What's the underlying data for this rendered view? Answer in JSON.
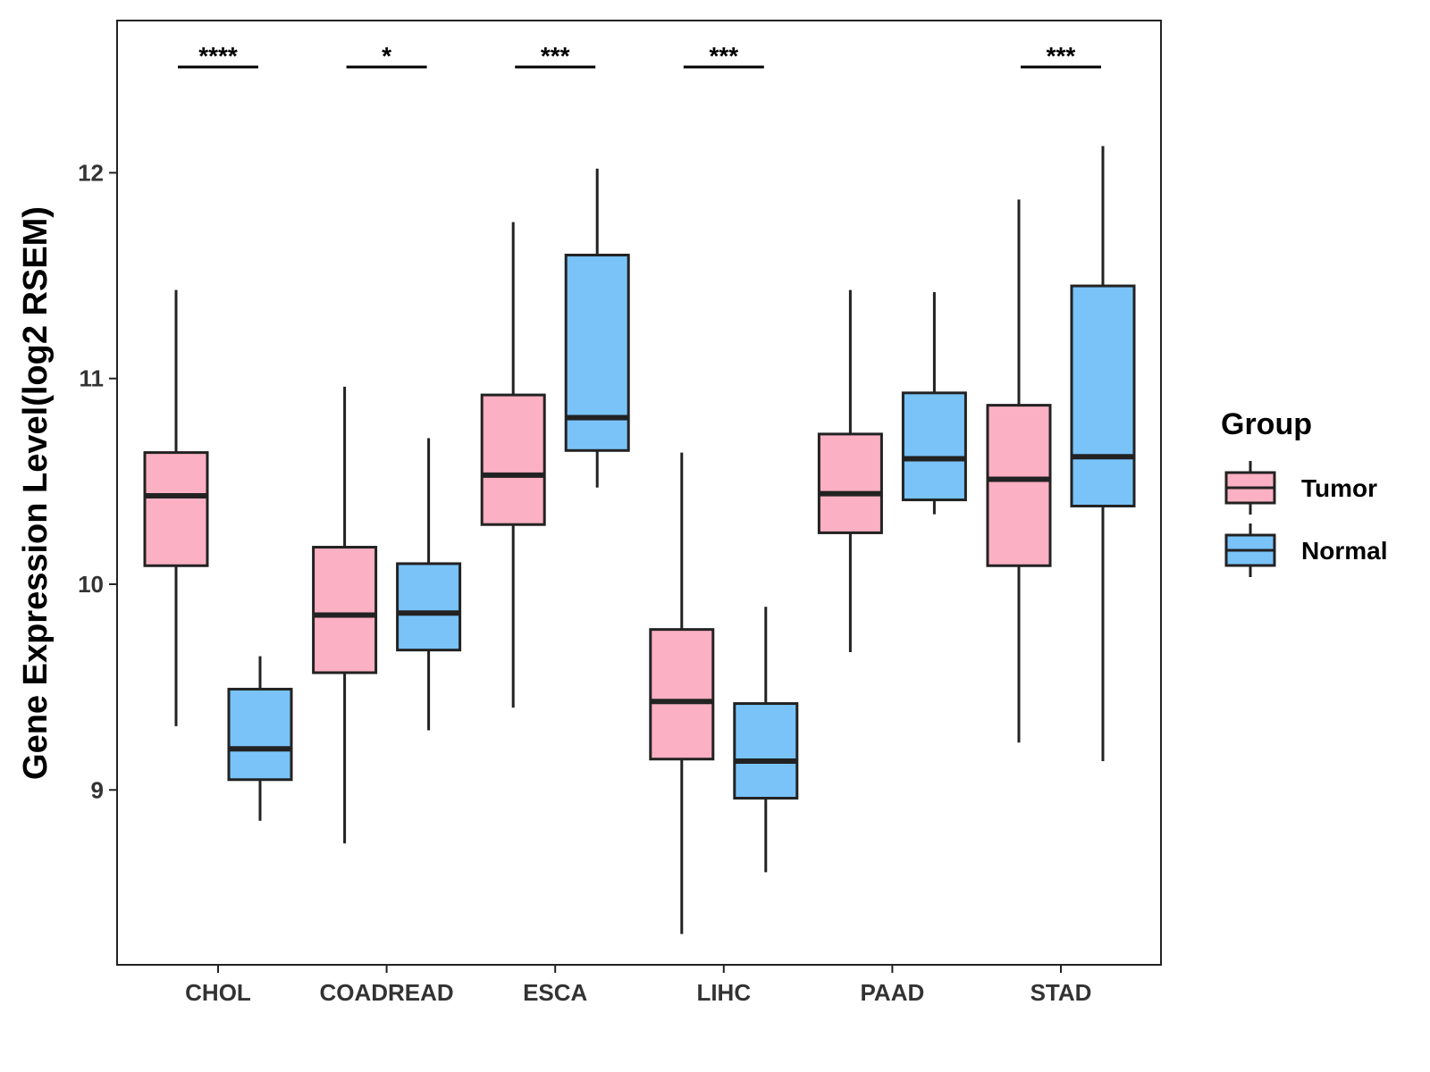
{
  "chart_data": {
    "type": "boxplot",
    "ylabel": "Gene Expression Level(log2 RSEM)",
    "xlabel": "",
    "ylim": [
      8.15,
      12.74
    ],
    "yticks": [
      9,
      10,
      11,
      12
    ],
    "categories": [
      "CHOL",
      "COADREAD",
      "ESCA",
      "LIHC",
      "PAAD",
      "STAD"
    ],
    "legend": {
      "title": "Group",
      "position": "right",
      "entries": [
        {
          "name": "Tumor",
          "color": "#FBB0C3"
        },
        {
          "name": "Normal",
          "color": "#79C3F8"
        }
      ]
    },
    "series": [
      {
        "name": "Tumor",
        "color": "#FBB0C3",
        "boxes": [
          {
            "min": 9.31,
            "q1": 10.09,
            "median": 10.43,
            "q3": 10.64,
            "max": 11.43
          },
          {
            "min": 8.74,
            "q1": 9.57,
            "median": 9.85,
            "q3": 10.18,
            "max": 10.96
          },
          {
            "min": 9.4,
            "q1": 10.29,
            "median": 10.53,
            "q3": 10.92,
            "max": 11.76
          },
          {
            "min": 8.3,
            "q1": 9.15,
            "median": 9.43,
            "q3": 9.78,
            "max": 10.64
          },
          {
            "min": 9.67,
            "q1": 10.25,
            "median": 10.44,
            "q3": 10.73,
            "max": 11.43
          },
          {
            "min": 9.23,
            "q1": 10.09,
            "median": 10.51,
            "q3": 10.87,
            "max": 11.87
          }
        ]
      },
      {
        "name": "Normal",
        "color": "#79C3F8",
        "boxes": [
          {
            "min": 8.85,
            "q1": 9.05,
            "median": 9.2,
            "q3": 9.49,
            "max": 9.65
          },
          {
            "min": 9.29,
            "q1": 9.68,
            "median": 9.86,
            "q3": 10.1,
            "max": 10.71
          },
          {
            "min": 10.47,
            "q1": 10.65,
            "median": 10.81,
            "q3": 11.6,
            "max": 12.02
          },
          {
            "min": 8.6,
            "q1": 8.96,
            "median": 9.14,
            "q3": 9.42,
            "max": 9.89
          },
          {
            "min": 10.34,
            "q1": 10.41,
            "median": 10.61,
            "q3": 10.93,
            "max": 11.42
          },
          {
            "min": 9.14,
            "q1": 10.38,
            "median": 10.62,
            "q3": 11.45,
            "max": 12.13
          }
        ]
      }
    ],
    "significance": [
      "****",
      "*",
      "***",
      "***",
      "",
      "***"
    ]
  }
}
